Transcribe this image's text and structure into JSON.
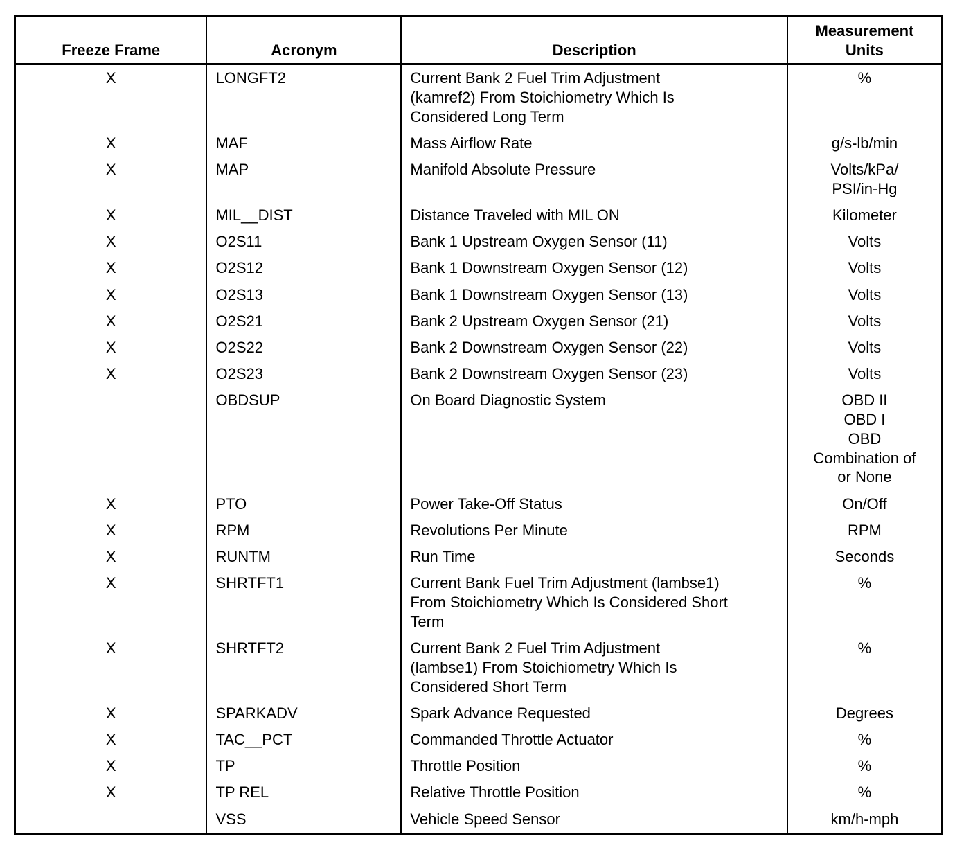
{
  "table": {
    "headers": [
      "Freeze Frame",
      "Acronym",
      "Description",
      [
        "Measurement",
        "Units"
      ]
    ],
    "rows": [
      [
        "X",
        "LONGFT2",
        [
          "Current Bank 2 Fuel Trim Adjustment",
          "(kamref2) From Stoichiometry Which Is",
          "Considered Long Term"
        ],
        "%"
      ],
      [
        "X",
        "MAF",
        "Mass Airflow Rate",
        "g/s-lb/min"
      ],
      [
        "X",
        "MAP",
        "Manifold Absolute Pressure",
        [
          "Volts/kPa/",
          "PSI/in-Hg"
        ]
      ],
      [
        "X",
        "MIL__DIST",
        "Distance Traveled with MIL ON",
        "Kilometer"
      ],
      [
        "X",
        "O2S11",
        "Bank 1 Upstream Oxygen Sensor (11)",
        "Volts"
      ],
      [
        "X",
        "O2S12",
        "Bank 1 Downstream Oxygen Sensor (12)",
        "Volts"
      ],
      [
        "X",
        "O2S13",
        "Bank 1 Downstream Oxygen Sensor (13)",
        "Volts"
      ],
      [
        "X",
        "O2S21",
        "Bank 2 Upstream Oxygen Sensor (21)",
        "Volts"
      ],
      [
        "X",
        "O2S22",
        "Bank 2 Downstream Oxygen Sensor (22)",
        "Volts"
      ],
      [
        "X",
        "O2S23",
        "Bank 2 Downstream Oxygen Sensor (23)",
        "Volts"
      ],
      [
        null,
        "OBDSUP",
        "On Board Diagnostic System",
        [
          "OBD II",
          "OBD I",
          "OBD",
          "Combination of",
          "or None"
        ]
      ],
      [
        "X",
        "PTO",
        "Power Take-Off Status",
        "On/Off"
      ],
      [
        "X",
        "RPM",
        "Revolutions Per Minute",
        "RPM"
      ],
      [
        "X",
        "RUNTM",
        "Run Time",
        "Seconds"
      ],
      [
        "X",
        "SHRTFT1",
        [
          "Current Bank Fuel Trim Adjustment (lambse1)",
          "From Stoichiometry Which Is Considered Short",
          "Term"
        ],
        "%"
      ],
      [
        "X",
        "SHRTFT2",
        [
          "Current Bank 2 Fuel Trim Adjustment",
          "(lambse1) From Stoichiometry Which Is",
          "Considered Short Term"
        ],
        "%"
      ],
      [
        "X",
        "SPARKADV",
        "Spark Advance Requested",
        "Degrees"
      ],
      [
        "X",
        "TAC__PCT",
        "Commanded Throttle Actuator",
        "%"
      ],
      [
        "X",
        "TP",
        "Throttle Position",
        "%"
      ],
      [
        "X",
        "TP REL",
        "Relative Throttle Position",
        "%"
      ],
      [
        null,
        "VSS",
        "Vehicle Speed Sensor",
        "km/h-mph"
      ]
    ]
  }
}
